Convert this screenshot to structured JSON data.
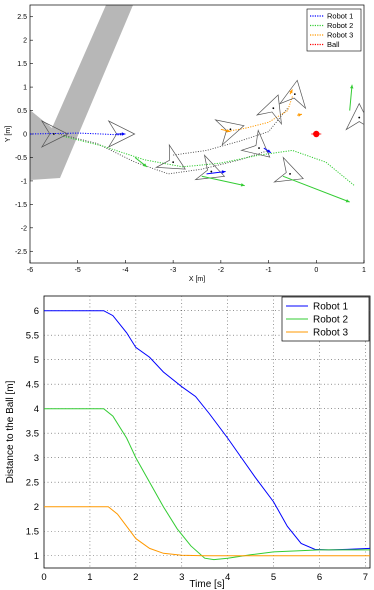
{
  "chart_data": [
    {
      "type": "line",
      "xlabel": "X [m]",
      "ylabel": "Y [m]",
      "xlim": [
        -6,
        1
      ],
      "ylim": [
        -2.75,
        2.75
      ],
      "xticks": [
        -6,
        -5,
        -4,
        -3,
        -2,
        -1,
        0,
        1
      ],
      "yticks": [
        -2.5,
        -2,
        -1.5,
        -1,
        -0.5,
        0,
        0.5,
        1,
        1.5,
        2,
        2.5
      ],
      "ytick_labels": [
        "-2.5",
        "-2",
        "-1.5",
        "-1",
        "-0.5",
        "0",
        "0.5",
        "1",
        "1.5",
        "2",
        "2.5"
      ],
      "grid": false,
      "legend_position": "top-right",
      "series": [
        {
          "name": "Robot 1",
          "color": "#0000ff",
          "style": "dotted",
          "x": [
            -6,
            -5.5,
            -5,
            -4.5,
            -4.1
          ],
          "y": [
            0,
            0.01,
            0.02,
            0.0,
            -0.02
          ]
        },
        {
          "name": "Robot 2",
          "color": "#33cc33",
          "style": "dotted",
          "x": [
            -5.3,
            -4.5,
            -3.6,
            -2.8,
            -2.0,
            -1.2,
            -0.5,
            0.2,
            0.8
          ],
          "y": [
            -0.05,
            -0.25,
            -0.55,
            -0.7,
            -0.62,
            -0.45,
            -0.35,
            -0.6,
            -1.1
          ]
        },
        {
          "name": "Robot 3",
          "color": "#ff9900",
          "style": "dotted",
          "x": [
            -1.9,
            -1.5,
            -1.0,
            -0.6,
            -0.5
          ],
          "y": [
            0.05,
            0.12,
            0.25,
            0.5,
            0.8
          ]
        },
        {
          "name": "Ball",
          "color": "#ff0000",
          "style": "dotted",
          "x": [
            0,
            0
          ],
          "y": [
            0,
            0
          ]
        }
      ],
      "connecting_lines": [
        {
          "color": "#444444",
          "style": "dotted",
          "x": [
            -5.4,
            -4.6,
            -3.8,
            -3.1,
            -2.4,
            -1.6,
            -1.0
          ],
          "y": [
            0,
            -0.2,
            -0.6,
            -0.85,
            -0.75,
            -0.55,
            -0.35
          ]
        },
        {
          "color": "#444444",
          "style": "dotted",
          "x": [
            -3.0,
            -2.3,
            -1.6,
            -1.0,
            -0.6
          ],
          "y": [
            -0.45,
            -0.35,
            -0.15,
            0.05,
            0.55
          ]
        }
      ],
      "vectors": [
        {
          "color": "#0000ff",
          "x": [
            -4.2,
            -4.0
          ],
          "y": [
            0.0,
            0.0
          ]
        },
        {
          "color": "#0000ff",
          "x": [
            -2.3,
            -1.9
          ],
          "y": [
            -0.85,
            -0.8
          ]
        },
        {
          "color": "#0000ff",
          "x": [
            -1.1,
            -0.95
          ],
          "y": [
            -0.3,
            -0.4
          ]
        },
        {
          "color": "#33cc33",
          "x": [
            -2.4,
            -1.5
          ],
          "y": [
            -0.9,
            -1.1
          ]
        },
        {
          "color": "#33cc33",
          "x": [
            -0.7,
            0.7
          ],
          "y": [
            -0.9,
            -1.45
          ]
        },
        {
          "color": "#33cc33",
          "x": [
            0.7,
            0.75
          ],
          "y": [
            0.5,
            1.05
          ]
        },
        {
          "color": "#33cc33",
          "x": [
            -3.8,
            -3.55
          ],
          "y": [
            -0.5,
            -0.7
          ]
        },
        {
          "color": "#ff9900",
          "x": [
            -2.0,
            -1.8
          ],
          "y": [
            0.1,
            0.05
          ]
        },
        {
          "color": "#ff9900",
          "x": [
            -0.55,
            -0.5
          ],
          "y": [
            0.85,
            0.95
          ]
        },
        {
          "color": "#ff9900",
          "x": [
            -0.4,
            -0.3
          ],
          "y": [
            0.4,
            0.42
          ]
        }
      ],
      "robots": [
        {
          "x": -5.5,
          "y": 0.0,
          "heading": 0
        },
        {
          "x": -4.1,
          "y": 0.0,
          "heading": 0
        },
        {
          "x": -3.0,
          "y": -0.6,
          "heading": -30
        },
        {
          "x": -2.2,
          "y": -0.8,
          "heading": -20
        },
        {
          "x": -1.8,
          "y": 0.1,
          "heading": 15
        },
        {
          "x": -1.2,
          "y": -0.3,
          "heading": -40
        },
        {
          "x": -0.9,
          "y": 0.55,
          "heading": 70
        },
        {
          "x": -0.45,
          "y": 0.85,
          "heading": 80
        },
        {
          "x": -0.55,
          "y": -0.85,
          "heading": -20
        },
        {
          "x": 0.9,
          "y": 0.35,
          "heading": 90
        }
      ],
      "ball": {
        "x": 0,
        "y": 0
      }
    },
    {
      "type": "line",
      "xlabel": "Time  [s]",
      "ylabel": "Distance to the Ball  [m]",
      "xlim": [
        0,
        7.1
      ],
      "ylim": [
        0.75,
        6.3
      ],
      "xticks": [
        0,
        1,
        2,
        3,
        4,
        5,
        6,
        7
      ],
      "yticks": [
        1,
        1.5,
        2,
        2.5,
        3,
        3.5,
        4,
        4.5,
        5,
        5.5,
        6
      ],
      "grid": true,
      "legend_position": "top-right",
      "series": [
        {
          "name": "Robot 1",
          "color": "#0000ff",
          "x": [
            0,
            1.0,
            1.3,
            1.5,
            1.8,
            2.0,
            2.3,
            2.6,
            3.0,
            3.3,
            3.6,
            4.0,
            4.3,
            4.6,
            5.0,
            5.3,
            5.6,
            5.9,
            6.2,
            6.6,
            7.1
          ],
          "y": [
            6,
            6,
            6,
            5.9,
            5.55,
            5.25,
            5.05,
            4.75,
            4.45,
            4.25,
            3.9,
            3.4,
            3.0,
            2.6,
            2.1,
            1.6,
            1.25,
            1.13,
            1.12,
            1.13,
            1.15
          ]
        },
        {
          "name": "Robot 2",
          "color": "#33cc33",
          "x": [
            0,
            1.0,
            1.3,
            1.5,
            1.8,
            2.0,
            2.3,
            2.6,
            2.9,
            3.2,
            3.5,
            3.7,
            4.0,
            4.5,
            5.0,
            5.5,
            6.0,
            6.5,
            7.1
          ],
          "y": [
            4,
            4,
            4,
            3.85,
            3.4,
            3.0,
            2.5,
            2.0,
            1.55,
            1.2,
            0.95,
            0.92,
            0.95,
            1.02,
            1.08,
            1.1,
            1.12,
            1.12,
            1.12
          ]
        },
        {
          "name": "Robot 3",
          "color": "#ff9900",
          "x": [
            0,
            1.0,
            1.4,
            1.6,
            1.8,
            2.0,
            2.3,
            2.6,
            3.0,
            3.5,
            4.0,
            5.0,
            6.0,
            7.1
          ],
          "y": [
            2,
            2,
            2,
            1.85,
            1.6,
            1.35,
            1.15,
            1.05,
            1.01,
            1.0,
            1.0,
            1.0,
            1.0,
            1.0
          ]
        }
      ]
    }
  ]
}
